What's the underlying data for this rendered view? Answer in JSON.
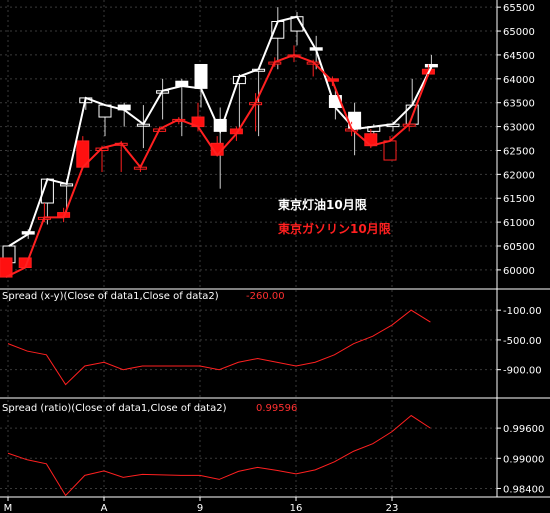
{
  "chart_data": [
    {
      "type": "candlestick",
      "panel": "price",
      "y_ticks": [
        60000,
        60500,
        61000,
        61500,
        62000,
        62500,
        63000,
        63500,
        64000,
        64500,
        65000,
        65500
      ],
      "y_tick_labels": [
        "60000",
        "60500",
        "61000",
        "61500",
        "62000",
        "62500",
        "63000",
        "63500",
        "64000",
        "64500",
        "65000",
        "65500"
      ],
      "ylim": [
        59600,
        65650
      ],
      "x_tick_labels": [
        {
          "label": "M",
          "index": 0
        },
        {
          "label": "A",
          "index": 5
        },
        {
          "label": "9",
          "index": 10
        },
        {
          "label": "16",
          "index": 15
        },
        {
          "label": "23",
          "index": 20
        }
      ],
      "legend": [
        "東京灯油10月限",
        "東京ガソリン10月限"
      ],
      "series": [
        {
          "name": "東京灯油10月限",
          "color": "#ffffff",
          "ohlc": [
            [
              60150,
              60500,
              59950,
              60500
            ],
            [
              60800,
              60850,
              60650,
              60750
            ],
            [
              61400,
              61900,
              60950,
              61900
            ],
            [
              61800,
              61900,
              61100,
              61800
            ],
            [
              63500,
              63600,
              63350,
              63600
            ],
            [
              63200,
              63450,
              62800,
              63450
            ],
            [
              63450,
              63500,
              63000,
              63350
            ],
            [
              63050,
              63450,
              62550,
              63050
            ],
            [
              63700,
              64000,
              63150,
              63750
            ],
            [
              63950,
              64000,
              62800,
              63850
            ],
            [
              64300,
              64300,
              63400,
              63800
            ],
            [
              63150,
              63400,
              61700,
              62900
            ],
            [
              63900,
              64100,
              62900,
              64050
            ],
            [
              64200,
              64200,
              62800,
              64200
            ],
            [
              64850,
              65500,
              64200,
              65200
            ],
            [
              65000,
              65400,
              64700,
              65300
            ],
            [
              64650,
              64900,
              64200,
              64600
            ],
            [
              63650,
              63800,
              63150,
              63400
            ],
            [
              63300,
              63500,
              62400,
              62950
            ],
            [
              62900,
              63050,
              62800,
              63000
            ],
            [
              63000,
              63100,
              62900,
              63050
            ],
            [
              63050,
              64000,
              63050,
              63450
            ],
            [
              64300,
              64500,
              64100,
              64250
            ]
          ]
        },
        {
          "name": "東京ガソリン10月限",
          "color": "#ff2020",
          "ohlc": [
            [
              60250,
              60250,
              59850,
              59850
            ],
            [
              60250,
              60250,
              60050,
              60050
            ],
            [
              61100,
              61400,
              61000,
              61100
            ],
            [
              61200,
              61300,
              61000,
              61100
            ],
            [
              62700,
              62800,
              62150,
              62150
            ],
            [
              62500,
              62600,
              62050,
              62550
            ],
            [
              62650,
              62700,
              62050,
              62650
            ],
            [
              62150,
              62200,
              62050,
              62150
            ],
            [
              62900,
              63000,
              62900,
              62950
            ],
            [
              63150,
              63200,
              63050,
              63150
            ],
            [
              63200,
              63500,
              62900,
              63000
            ],
            [
              62650,
              62800,
              62400,
              62400
            ],
            [
              62950,
              63000,
              62700,
              62850
            ],
            [
              63500,
              63700,
              62900,
              63500
            ],
            [
              64350,
              64450,
              64250,
              64350
            ],
            [
              64500,
              64700,
              64350,
              64500
            ],
            [
              64350,
              64400,
              64050,
              64350
            ],
            [
              64000,
              64050,
              63850,
              63950
            ],
            [
              62950,
              63100,
              62800,
              62950
            ],
            [
              62850,
              62950,
              62550,
              62600
            ],
            [
              62300,
              62800,
              62300,
              62700
            ],
            [
              63050,
              63100,
              62900,
              63050
            ],
            [
              64200,
              64300,
              64050,
              64100
            ]
          ]
        }
      ]
    },
    {
      "type": "line",
      "panel": "spread",
      "title": "Spread (x-y)(Close of data1,Close of data2)",
      "last_value": "-260.00",
      "color": "#ff2020",
      "y_ticks": [
        -100,
        -500,
        -900
      ],
      "y_tick_labels": [
        "-100.00",
        "-500.00",
        "-900.00"
      ],
      "ylim": [
        -1200,
        50
      ],
      "values": [
        -550,
        -650,
        -700,
        -1100,
        -850,
        -800,
        -900,
        -850,
        -850,
        -850,
        -850,
        -900,
        -800,
        -750,
        -800,
        -850,
        -800,
        -700,
        -550,
        -450,
        -300,
        -100,
        -260
      ]
    },
    {
      "type": "line",
      "panel": "ratio",
      "title": "Spread (ratio)(Close of data1,Close of data2)",
      "last_value": "0.99596",
      "color": "#ff2020",
      "y_ticks": [
        0.996,
        0.99,
        0.984
      ],
      "y_tick_labels": [
        "0.99600",
        "0.99000",
        "0.98400"
      ],
      "ylim": [
        0.9823,
        1.0
      ],
      "values": [
        0.991,
        0.9897,
        0.9889,
        0.9826,
        0.9866,
        0.9875,
        0.9862,
        0.9868,
        0.9867,
        0.9866,
        0.9866,
        0.9858,
        0.9874,
        0.9882,
        0.9876,
        0.9869,
        0.9877,
        0.9893,
        0.9914,
        0.9929,
        0.9953,
        0.9985,
        0.996
      ]
    }
  ]
}
